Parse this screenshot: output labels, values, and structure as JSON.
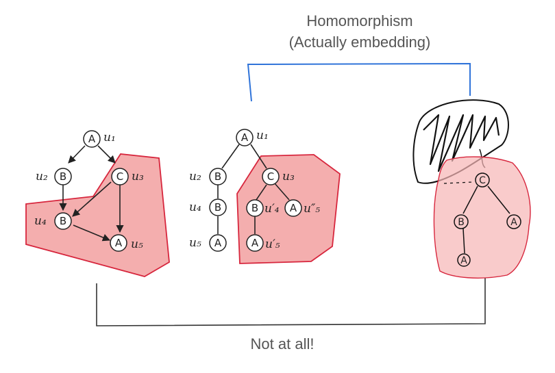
{
  "caption_top": [
    "Homomorphism",
    "(Actually embedding)"
  ],
  "caption_bottom": "Not at all!",
  "graph1": {
    "nodes": [
      {
        "letter": "A",
        "label": "u₁"
      },
      {
        "letter": "B",
        "label": "u₂"
      },
      {
        "letter": "C",
        "label": "u₃"
      },
      {
        "letter": "B",
        "label": "u₄"
      },
      {
        "letter": "A",
        "label": "u₅"
      }
    ]
  },
  "graph2": {
    "nodes": [
      {
        "letter": "A",
        "label": "u₁"
      },
      {
        "letter": "B",
        "label": "u₂"
      },
      {
        "letter": "C",
        "label": "u₃"
      },
      {
        "letter": "B",
        "label": "u₄"
      },
      {
        "letter": "A",
        "label": "u₅"
      },
      {
        "letter": "B",
        "label": "u′₄"
      },
      {
        "letter": "A",
        "label": "u″₅"
      },
      {
        "letter": "A",
        "label": "u′₅"
      }
    ]
  },
  "sketch": {
    "nodes": [
      {
        "letter": "C"
      },
      {
        "letter": "B"
      },
      {
        "letter": "A"
      },
      {
        "letter": "A"
      }
    ]
  },
  "colors": {
    "highlight_fill": "#f19c9c",
    "highlight_stroke": "#d7263d",
    "connector_top": "#2f73d9",
    "connector_bottom": "#333333"
  }
}
